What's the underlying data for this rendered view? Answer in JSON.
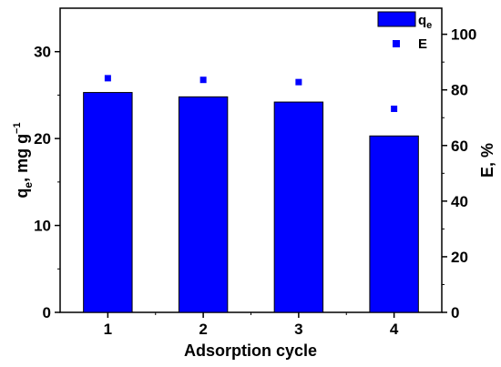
{
  "chart_data": {
    "type": "bar",
    "title": "",
    "categories": [
      "1",
      "2",
      "3",
      "4"
    ],
    "xlabel": "Adsorption cycle",
    "left_axis": {
      "label_main": "q",
      "label_sub": "e",
      "label_rest": ", mg g",
      "label_sup": "−1",
      "ylim": [
        0,
        35
      ],
      "ticks": [
        0,
        10,
        20,
        30
      ],
      "tick_labels": [
        "0",
        "10",
        "20",
        "30"
      ]
    },
    "right_axis": {
      "label": "E, %",
      "ylim": [
        0,
        109.375
      ],
      "ticks": [
        0,
        20,
        40,
        60,
        80,
        100
      ],
      "tick_labels": [
        "0",
        "20",
        "40",
        "60",
        "80",
        "100"
      ]
    },
    "series": [
      {
        "name_main": "q",
        "name_sub": "e",
        "type": "bar",
        "axis": "left",
        "color": "#0000ff",
        "values": [
          25.3,
          24.8,
          24.2,
          20.3
        ]
      },
      {
        "name": "E",
        "type": "scatter",
        "axis": "right",
        "color": "#0000ff",
        "values": [
          84.2,
          83.6,
          82.8,
          73.2
        ]
      }
    ],
    "legend": "top-right",
    "grid": false
  }
}
